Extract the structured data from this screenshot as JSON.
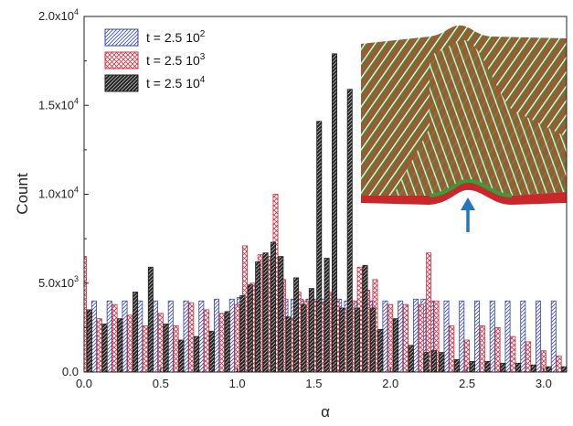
{
  "chart_data": {
    "type": "bar",
    "title": "",
    "xlabel": "α",
    "ylabel": "Count",
    "xlim": [
      0,
      3.15
    ],
    "ylim": [
      0,
      20000
    ],
    "x_ticks": [
      0.0,
      0.5,
      1.0,
      1.5,
      2.0,
      2.5,
      3.0
    ],
    "x_tick_labels": [
      "0.0",
      "0.5",
      "1.0",
      "1.5",
      "2.0",
      "2.5",
      "3.0"
    ],
    "y_ticks": [
      0,
      5000,
      10000,
      15000,
      20000
    ],
    "y_tick_labels": [
      {
        "base": "0.0",
        "exp": ""
      },
      {
        "base": "5.0x10",
        "exp": "3"
      },
      {
        "base": "1.0x10",
        "exp": "4"
      },
      {
        "base": "1.5x10",
        "exp": "4"
      },
      {
        "base": "2.0x10",
        "exp": "4"
      }
    ],
    "legend": {
      "placement": "top-left"
    },
    "x": [
      0.0,
      0.1,
      0.2,
      0.3,
      0.4,
      0.5,
      0.6,
      0.7,
      0.8,
      0.9,
      1.0,
      1.05,
      1.1,
      1.15,
      1.2,
      1.25,
      1.3,
      1.35,
      1.4,
      1.45,
      1.5,
      1.55,
      1.6,
      1.65,
      1.7,
      1.75,
      1.8,
      1.85,
      1.9,
      2.0,
      2.1,
      2.2,
      2.25,
      2.3,
      2.4,
      2.5,
      2.6,
      2.7,
      2.8,
      2.9,
      3.0,
      3.1
    ],
    "series": [
      {
        "name": "t = 2.5 10",
        "name_exp": "2",
        "color": "#3a4aa0",
        "pattern": "diag-blue",
        "values": [
          4100,
          4000,
          4000,
          4000,
          4000,
          4000,
          4000,
          4000,
          4000,
          4100,
          4100,
          4200,
          4200,
          4100,
          4200,
          4200,
          4100,
          4100,
          4100,
          4100,
          4100,
          4100,
          4100,
          4100,
          4100,
          4000,
          4000,
          4100,
          4000,
          4000,
          4000,
          4100,
          4100,
          4000,
          4000,
          4000,
          4000,
          4000,
          4000,
          4000,
          4000,
          4000
        ]
      },
      {
        "name": "t = 2.5 10",
        "name_exp": "3",
        "color": "#cc3344",
        "pattern": "cross-red",
        "values": [
          6500,
          3000,
          3800,
          3200,
          2600,
          3300,
          2600,
          3900,
          3500,
          3300,
          3800,
          7100,
          5000,
          6600,
          6500,
          10000,
          5200,
          3000,
          4500,
          4000,
          4000,
          3900,
          4500,
          4000,
          3500,
          4000,
          5900,
          4600,
          5200,
          3800,
          3800,
          3800,
          6700,
          4000,
          2600,
          1800,
          2600,
          2500,
          2000,
          1700,
          1200,
          900
        ]
      },
      {
        "name": "t = 2.5 10",
        "name_exp": "4",
        "color": "#222222",
        "pattern": "diag-dark",
        "values": [
          3500,
          2700,
          3000,
          4500,
          5900,
          2700,
          1800,
          2000,
          2300,
          3400,
          4300,
          4900,
          6200,
          6700,
          7300,
          6500,
          3100,
          5300,
          3800,
          4700,
          14100,
          6400,
          17900,
          3600,
          15900,
          3600,
          6000,
          3600,
          2400,
          3000,
          1500,
          1100,
          1200,
          1100,
          700,
          600,
          600,
          500,
          500,
          400,
          300,
          300
        ]
      }
    ],
    "inset": {
      "arrow_color": "#2277bb",
      "stripe_colors": [
        "#2e8b2e",
        "#cc2222",
        "#e8e8e8"
      ]
    }
  }
}
